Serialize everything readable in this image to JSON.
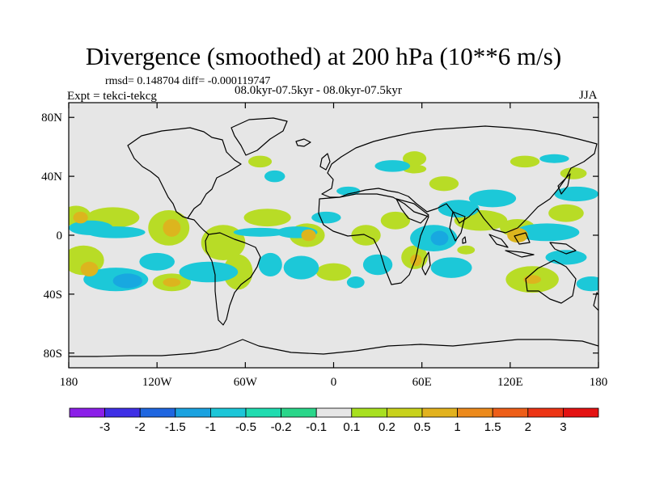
{
  "chart_data": {
    "type": "heatmap",
    "title": "Divergence (smoothed) at 200 hPa (10**6 m/s)",
    "rmsd_text": "rmsd= 0.148704 diff= -0.000119747",
    "experiment": "Expt = tekci-tekcg",
    "period": "08.0kyr-07.5kyr - 08.0kyr-07.5kyr",
    "season": "JJA",
    "xlim": [
      -180,
      180
    ],
    "ylim": [
      -90,
      90
    ],
    "x_ticks": [
      {
        "value": -180,
        "label": "180"
      },
      {
        "value": -120,
        "label": "120W"
      },
      {
        "value": -60,
        "label": "60W"
      },
      {
        "value": 0,
        "label": "0"
      },
      {
        "value": 60,
        "label": "60E"
      },
      {
        "value": 120,
        "label": "120E"
      },
      {
        "value": 180,
        "label": "180"
      }
    ],
    "y_ticks": [
      {
        "value": 80,
        "label": "80N"
      },
      {
        "value": 40,
        "label": "40N"
      },
      {
        "value": 0,
        "label": "0"
      },
      {
        "value": -40,
        "label": "40S"
      },
      {
        "value": -80,
        "label": "80S"
      }
    ],
    "colorbar": {
      "levels": [
        "-3",
        "-2",
        "-1.5",
        "-1",
        "-0.5",
        "-0.2",
        "-0.1",
        "0.1",
        "0.2",
        "0.5",
        "1",
        "1.5",
        "2",
        "3"
      ],
      "colors": [
        "#8b1fe8",
        "#3f2fe6",
        "#1f66e0",
        "#1aa2e0",
        "#1cc6d8",
        "#20dcb0",
        "#2ad68a",
        "#e6e6e6",
        "#a8e020",
        "#c8d21c",
        "#e2b21e",
        "#ec8a1c",
        "#ee5e18",
        "#ec3414",
        "#e41212"
      ]
    },
    "features": [
      {
        "class": "pos",
        "lon": -175,
        "lat": 13,
        "rlon": 10,
        "rlat": 7
      },
      {
        "class": "pos2",
        "lon": -172,
        "lat": 12,
        "rlon": 5,
        "rlat": 4
      },
      {
        "class": "neg",
        "lon": -165,
        "lat": 5,
        "rlon": 15,
        "rlat": 5
      },
      {
        "class": "pos",
        "lon": -150,
        "lat": 12,
        "rlon": 18,
        "rlat": 7
      },
      {
        "class": "neg",
        "lon": -148,
        "lat": 2,
        "rlon": 20,
        "rlat": 4
      },
      {
        "class": "pos",
        "lon": -170,
        "lat": -17,
        "rlon": 14,
        "rlat": 10
      },
      {
        "class": "pos2",
        "lon": -166,
        "lat": -23,
        "rlon": 6,
        "rlat": 5
      },
      {
        "class": "neg",
        "lon": -148,
        "lat": -30,
        "rlon": 22,
        "rlat": 8
      },
      {
        "class": "neg2",
        "lon": -140,
        "lat": -31,
        "rlon": 10,
        "rlat": 5
      },
      {
        "class": "pos",
        "lon": -112,
        "lat": 5,
        "rlon": 14,
        "rlat": 12
      },
      {
        "class": "pos2",
        "lon": -110,
        "lat": 5,
        "rlon": 6,
        "rlat": 6
      },
      {
        "class": "pos",
        "lon": -75,
        "lat": -5,
        "rlon": 15,
        "rlat": 12
      },
      {
        "class": "neg",
        "lon": -120,
        "lat": -18,
        "rlon": 12,
        "rlat": 6
      },
      {
        "class": "pos",
        "lon": -110,
        "lat": -32,
        "rlon": 13,
        "rlat": 6
      },
      {
        "class": "pos2",
        "lon": -110,
        "lat": -32,
        "rlon": 6,
        "rlat": 3
      },
      {
        "class": "neg",
        "lon": -85,
        "lat": -25,
        "rlon": 20,
        "rlat": 7
      },
      {
        "class": "pos",
        "lon": -65,
        "lat": -25,
        "rlon": 10,
        "rlat": 12
      },
      {
        "class": "neg",
        "lon": -43,
        "lat": -20,
        "rlon": 8,
        "rlat": 8
      },
      {
        "class": "pos",
        "lon": -45,
        "lat": 12,
        "rlon": 16,
        "rlat": 6
      },
      {
        "class": "neg",
        "lon": -50,
        "lat": 2,
        "rlon": 18,
        "rlat": 3
      },
      {
        "class": "neg",
        "lon": -25,
        "lat": 2,
        "rlon": 14,
        "rlat": 4
      },
      {
        "class": "pos",
        "lon": -18,
        "lat": 0,
        "rlon": 12,
        "rlat": 8
      },
      {
        "class": "pos2",
        "lon": -17,
        "lat": 0,
        "rlon": 5,
        "rlat": 4
      },
      {
        "class": "neg",
        "lon": -5,
        "lat": 12,
        "rlon": 10,
        "rlat": 4
      },
      {
        "class": "neg",
        "lon": -22,
        "lat": -22,
        "rlon": 12,
        "rlat": 8
      },
      {
        "class": "pos",
        "lon": 0,
        "lat": -25,
        "rlon": 12,
        "rlat": 6
      },
      {
        "class": "neg",
        "lon": 30,
        "lat": -20,
        "rlon": 10,
        "rlat": 7
      },
      {
        "class": "pos",
        "lon": 22,
        "lat": 0,
        "rlon": 10,
        "rlat": 7
      },
      {
        "class": "pos",
        "lon": 42,
        "lat": 10,
        "rlon": 10,
        "rlat": 6
      },
      {
        "class": "pos",
        "lon": 55,
        "lat": -15,
        "rlon": 9,
        "rlat": 8
      },
      {
        "class": "pos2",
        "lon": 56,
        "lat": -17,
        "rlon": 4,
        "rlat": 4
      },
      {
        "class": "neg",
        "lon": 68,
        "lat": -2,
        "rlon": 16,
        "rlat": 9
      },
      {
        "class": "neg2",
        "lon": 72,
        "lat": -2,
        "rlon": 6,
        "rlat": 5
      },
      {
        "class": "neg",
        "lon": 80,
        "lat": -22,
        "rlon": 14,
        "rlat": 7
      },
      {
        "class": "pos",
        "lon": 100,
        "lat": 10,
        "rlon": 18,
        "rlat": 7
      },
      {
        "class": "neg",
        "lon": 85,
        "lat": 18,
        "rlon": 14,
        "rlat": 6
      },
      {
        "class": "pos",
        "lon": 75,
        "lat": 35,
        "rlon": 10,
        "rlat": 5
      },
      {
        "class": "neg",
        "lon": 108,
        "lat": 25,
        "rlon": 16,
        "rlat": 6
      },
      {
        "class": "pos",
        "lon": 125,
        "lat": 5,
        "rlon": 12,
        "rlat": 6
      },
      {
        "class": "pos2",
        "lon": 125,
        "lat": 0,
        "rlon": 7,
        "rlat": 5
      },
      {
        "class": "neg",
        "lon": 145,
        "lat": 2,
        "rlon": 22,
        "rlat": 6
      },
      {
        "class": "pos",
        "lon": 158,
        "lat": 15,
        "rlon": 12,
        "rlat": 6
      },
      {
        "class": "neg",
        "lon": 165,
        "lat": 28,
        "rlon": 15,
        "rlat": 5
      },
      {
        "class": "pos",
        "lon": 135,
        "lat": -30,
        "rlon": 18,
        "rlat": 9
      },
      {
        "class": "pos2",
        "lon": 135,
        "lat": -30,
        "rlon": 6,
        "rlat": 3
      },
      {
        "class": "neg",
        "lon": 158,
        "lat": -15,
        "rlon": 14,
        "rlat": 5
      },
      {
        "class": "neg",
        "lon": 175,
        "lat": -33,
        "rlon": 10,
        "rlat": 5
      },
      {
        "class": "neg",
        "lon": 40,
        "lat": 47,
        "rlon": 12,
        "rlat": 4
      },
      {
        "class": "pos",
        "lon": 55,
        "lat": 45,
        "rlon": 8,
        "rlat": 3
      },
      {
        "class": "neg",
        "lon": 150,
        "lat": 52,
        "rlon": 10,
        "rlat": 3
      },
      {
        "class": "neg",
        "lon": -40,
        "lat": 40,
        "rlon": 7,
        "rlat": 4
      },
      {
        "class": "pos",
        "lon": -50,
        "lat": 50,
        "rlon": 8,
        "rlat": 4
      },
      {
        "class": "pos",
        "lon": 130,
        "lat": 50,
        "rlon": 10,
        "rlat": 4
      },
      {
        "class": "pos",
        "lon": 163,
        "lat": 42,
        "rlon": 9,
        "rlat": 4
      },
      {
        "class": "pos",
        "lon": 55,
        "lat": 52,
        "rlon": 8,
        "rlat": 5
      },
      {
        "class": "neg",
        "lon": 10,
        "lat": 30,
        "rlon": 8,
        "rlat": 3
      },
      {
        "class": "pos",
        "lon": 90,
        "lat": -10,
        "rlon": 6,
        "rlat": 3
      },
      {
        "class": "neg",
        "lon": 15,
        "lat": -32,
        "rlon": 6,
        "rlat": 4
      }
    ]
  }
}
